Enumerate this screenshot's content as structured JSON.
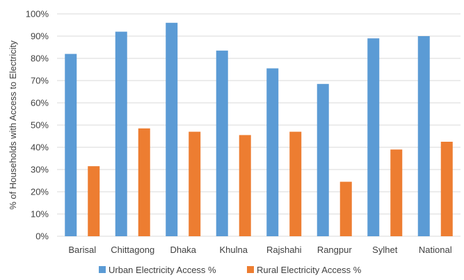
{
  "chart_data": {
    "type": "bar",
    "categories": [
      "Barisal",
      "Chittagong",
      "Dhaka",
      "Khulna",
      "Rajshahi",
      "Rangpur",
      "Sylhet",
      "National"
    ],
    "series": [
      {
        "name": "Urban Electricity Access %",
        "color": "#5b9bd5",
        "values": [
          82,
          92,
          96,
          83.5,
          75.5,
          68.5,
          89,
          90
        ]
      },
      {
        "name": "Rural Electricity Access %",
        "color": "#ed7d31",
        "values": [
          31.5,
          48.5,
          47,
          45.5,
          47,
          24.5,
          39,
          42.5
        ]
      }
    ],
    "title": "",
    "xlabel": "",
    "ylabel": "% of Households with Access to Electricity",
    "ylim": [
      0,
      100
    ],
    "yticks": [
      "0%",
      "10%",
      "20%",
      "30%",
      "40%",
      "50%",
      "60%",
      "70%",
      "80%",
      "90%",
      "100%"
    ],
    "grid": true,
    "legend": "bottom"
  }
}
